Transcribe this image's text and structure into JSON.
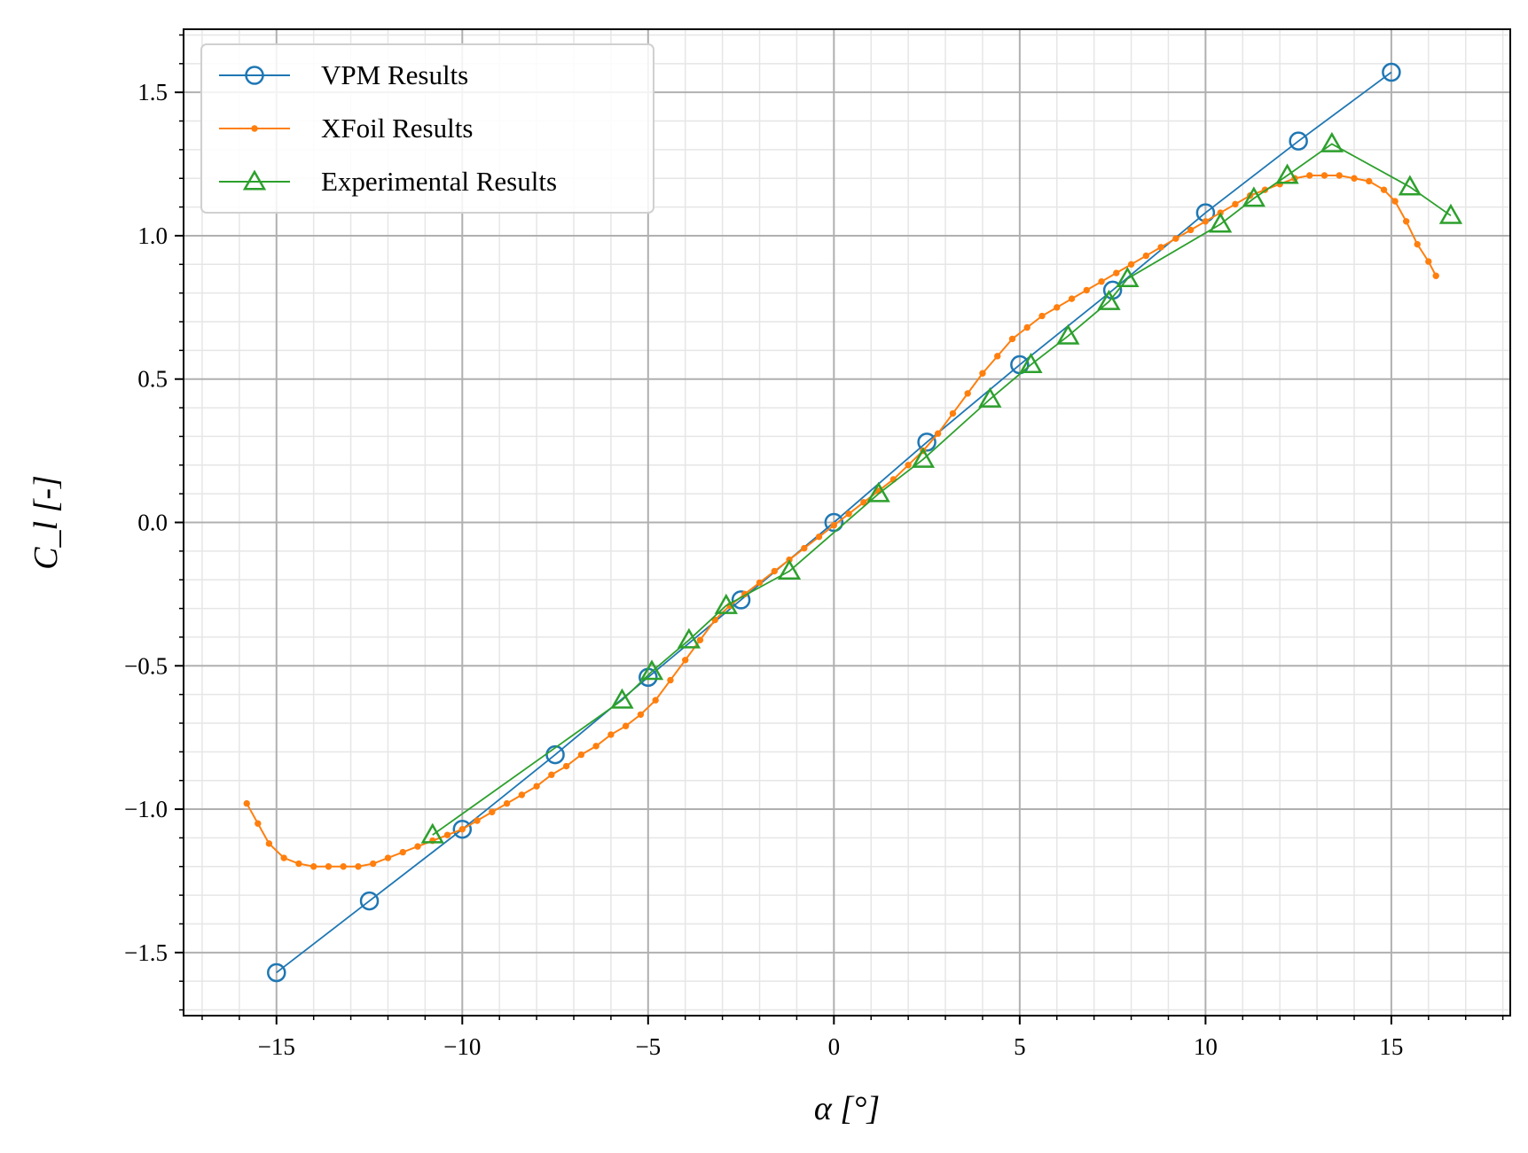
{
  "chart_data": {
    "type": "line",
    "title": "",
    "xlabel": "α [°]",
    "ylabel": "C_l [-]",
    "xlim": [
      -17.5,
      18.2
    ],
    "ylim": [
      -1.72,
      1.72
    ],
    "xticks": [
      -15,
      -10,
      -5,
      0,
      5,
      10,
      15
    ],
    "xtick_labels": [
      "−15",
      "−10",
      "−5",
      "0",
      "5",
      "10",
      "15"
    ],
    "yticks": [
      -1.5,
      -1.0,
      -0.5,
      0.0,
      0.5,
      1.0,
      1.5
    ],
    "ytick_labels": [
      "−1.5",
      "−1.0",
      "−0.5",
      "0.0",
      "0.5",
      "1.0",
      "1.5"
    ],
    "grid": true,
    "minor_grid": true,
    "legend_position": "top-left",
    "series": [
      {
        "name": "VPM Results",
        "color": "#1f77b4",
        "marker": "circle",
        "x": [
          -15,
          -12.5,
          -10,
          -7.5,
          -5,
          -2.5,
          0,
          2.5,
          5,
          7.5,
          10,
          12.5,
          15
        ],
        "y": [
          -1.57,
          -1.32,
          -1.07,
          -0.81,
          -0.54,
          -0.27,
          0.0,
          0.28,
          0.55,
          0.81,
          1.08,
          1.33,
          1.57
        ]
      },
      {
        "name": "XFoil Results",
        "color": "#ff7f0e",
        "marker": "small-dot",
        "x": [
          -15.8,
          -15.5,
          -15.2,
          -14.8,
          -14.4,
          -14.0,
          -13.6,
          -13.2,
          -12.8,
          -12.4,
          -12.0,
          -11.6,
          -11.2,
          -10.8,
          -10.4,
          -10.0,
          -9.6,
          -9.2,
          -8.8,
          -8.4,
          -8.0,
          -7.6,
          -7.2,
          -6.8,
          -6.4,
          -6.0,
          -5.6,
          -5.2,
          -4.8,
          -4.4,
          -4.0,
          -3.6,
          -3.2,
          -2.8,
          -2.4,
          -2.0,
          -1.6,
          -1.2,
          -0.8,
          -0.4,
          0.0,
          0.4,
          0.8,
          1.2,
          1.6,
          2.0,
          2.4,
          2.8,
          3.2,
          3.6,
          4.0,
          4.4,
          4.8,
          5.2,
          5.6,
          6.0,
          6.4,
          6.8,
          7.2,
          7.6,
          8.0,
          8.4,
          8.8,
          9.2,
          9.6,
          10.0,
          10.4,
          10.8,
          11.2,
          11.6,
          12.0,
          12.4,
          12.8,
          13.2,
          13.6,
          14.0,
          14.4,
          14.8,
          15.1,
          15.4,
          15.7,
          16.0,
          16.2
        ],
        "y": [
          -0.98,
          -1.05,
          -1.12,
          -1.17,
          -1.19,
          -1.2,
          -1.2,
          -1.2,
          -1.2,
          -1.19,
          -1.17,
          -1.15,
          -1.13,
          -1.11,
          -1.09,
          -1.07,
          -1.04,
          -1.01,
          -0.98,
          -0.95,
          -0.92,
          -0.88,
          -0.85,
          -0.81,
          -0.78,
          -0.74,
          -0.71,
          -0.67,
          -0.62,
          -0.55,
          -0.48,
          -0.41,
          -0.34,
          -0.29,
          -0.25,
          -0.21,
          -0.17,
          -0.13,
          -0.09,
          -0.05,
          -0.01,
          0.03,
          0.07,
          0.11,
          0.15,
          0.2,
          0.25,
          0.31,
          0.38,
          0.45,
          0.52,
          0.58,
          0.64,
          0.68,
          0.72,
          0.75,
          0.78,
          0.81,
          0.84,
          0.87,
          0.9,
          0.93,
          0.96,
          0.99,
          1.02,
          1.05,
          1.08,
          1.11,
          1.14,
          1.16,
          1.18,
          1.2,
          1.21,
          1.21,
          1.21,
          1.2,
          1.19,
          1.16,
          1.12,
          1.05,
          0.97,
          0.91,
          0.86
        ]
      },
      {
        "name": "Experimental Results",
        "color": "#2ca02c",
        "marker": "triangle",
        "x": [
          -10.8,
          -5.7,
          -4.9,
          -3.9,
          -2.9,
          -1.2,
          1.2,
          2.4,
          4.2,
          5.3,
          6.3,
          7.4,
          7.9,
          10.4,
          11.3,
          12.2,
          13.4,
          15.5,
          16.6
        ],
        "y": [
          -1.09,
          -0.62,
          -0.52,
          -0.41,
          -0.29,
          -0.17,
          0.1,
          0.22,
          0.43,
          0.55,
          0.65,
          0.77,
          0.85,
          1.04,
          1.13,
          1.21,
          1.32,
          1.17,
          1.07
        ]
      }
    ]
  }
}
